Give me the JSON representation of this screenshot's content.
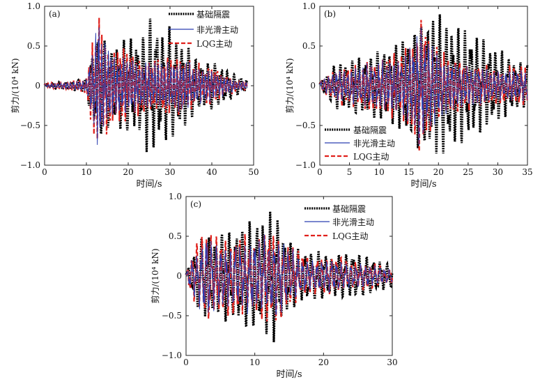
{
  "figure": {
    "panels": [
      "a",
      "b",
      "c"
    ]
  },
  "chart_data": [
    {
      "id": "a",
      "type": "line",
      "label": "(a)",
      "xlabel": "时间/s",
      "ylabel": "剪力/(10⁴ kN)",
      "xlim": [
        0,
        50
      ],
      "ylim": [
        -1.0,
        1.0
      ],
      "xticks": [
        "0",
        "10",
        "20",
        "30",
        "40",
        "50"
      ],
      "yticks": [
        "1.0",
        "0.5",
        "0",
        "−0.5",
        "−1.0"
      ],
      "legend_position": "top-right",
      "legend": [
        "基础隔震",
        "非光滑主动",
        "LQG主动"
      ],
      "series_style": [
        {
          "name": "基础隔震",
          "color": "#000000",
          "dash": "2,1.4",
          "width": 3.2
        },
        {
          "name": "非光滑主动",
          "color": "#2b3fb0",
          "dash": "",
          "width": 1.0
        },
        {
          "name": "LQG主动",
          "color": "#e0201b",
          "dash": "6,3",
          "width": 2.2
        }
      ],
      "envelope": {
        "t": [
          0,
          5,
          10,
          11,
          12,
          13,
          14,
          15,
          16,
          18,
          20,
          22,
          24,
          25,
          26,
          28,
          30,
          32,
          34,
          36,
          38,
          40,
          42,
          44,
          46,
          48.5
        ],
        "base": [
          0.02,
          0.05,
          0.08,
          0.45,
          0.55,
          0.65,
          0.6,
          0.55,
          0.5,
          0.55,
          0.6,
          0.6,
          0.7,
          0.9,
          0.85,
          0.7,
          0.7,
          0.6,
          0.5,
          0.35,
          0.3,
          0.3,
          0.25,
          0.2,
          0.12,
          0.08
        ],
        "active": [
          0.02,
          0.04,
          0.08,
          0.4,
          0.55,
          0.85,
          0.6,
          0.5,
          0.45,
          0.4,
          0.4,
          0.35,
          0.3,
          0.3,
          0.3,
          0.3,
          0.3,
          0.3,
          0.3,
          0.25,
          0.2,
          0.2,
          0.15,
          0.1,
          0.06,
          0.05
        ]
      },
      "period_base": 1.55,
      "period_active": 0.75
    },
    {
      "id": "b",
      "type": "line",
      "label": "(b)",
      "xlabel": "时间/s",
      "ylabel": "剪力/(10⁴ kN)",
      "xlim": [
        0,
        35
      ],
      "ylim": [
        -1.0,
        1.0
      ],
      "xticks": [
        "0",
        "5",
        "10",
        "15",
        "20",
        "25",
        "30",
        "35"
      ],
      "yticks": [
        "1.0",
        "0.5",
        "0",
        "−0.5",
        "−1.0"
      ],
      "legend_position": "bottom-left",
      "legend": [
        "基础隔震",
        "非光滑主动",
        "LQG主动"
      ],
      "series_style": [
        {
          "name": "基础隔震",
          "color": "#000000",
          "dash": "2,1.4",
          "width": 3.2
        },
        {
          "name": "非光滑主动",
          "color": "#2b3fb0",
          "dash": "",
          "width": 1.0
        },
        {
          "name": "LQG主动",
          "color": "#e0201b",
          "dash": "6,3",
          "width": 2.2
        }
      ],
      "envelope": {
        "t": [
          0,
          1,
          3,
          5,
          7,
          9,
          11,
          13,
          15,
          17,
          19,
          21,
          23,
          25,
          27,
          29,
          31,
          33,
          35
        ],
        "base": [
          0.05,
          0.12,
          0.3,
          0.3,
          0.35,
          0.4,
          0.45,
          0.5,
          0.65,
          0.8,
          0.9,
          0.85,
          0.75,
          0.7,
          0.6,
          0.5,
          0.4,
          0.3,
          0.25
        ],
        "active": [
          0.05,
          0.1,
          0.2,
          0.2,
          0.25,
          0.3,
          0.3,
          0.35,
          0.45,
          0.75,
          0.5,
          0.35,
          0.3,
          0.25,
          0.25,
          0.2,
          0.2,
          0.2,
          0.2
        ]
      },
      "period_base": 1.05,
      "period_active": 0.65
    },
    {
      "id": "c",
      "type": "line",
      "label": "(c)",
      "xlabel": "时间/s",
      "ylabel": "剪力/(10⁴ kN)",
      "xlim": [
        0,
        30
      ],
      "ylim": [
        -1.0,
        1.0
      ],
      "xticks": [
        "0",
        "10",
        "20",
        "30"
      ],
      "yticks": [
        "1.0",
        "0.5",
        "0",
        "−0.5",
        "−1.0"
      ],
      "legend_position": "top-right",
      "legend": [
        "基础隔震",
        "非光滑主动",
        "LQG主动"
      ],
      "series_style": [
        {
          "name": "基础隔震",
          "color": "#000000",
          "dash": "2,1.4",
          "width": 3.2
        },
        {
          "name": "非光滑主动",
          "color": "#2b3fb0",
          "dash": "",
          "width": 1.0
        },
        {
          "name": "LQG主动",
          "color": "#e0201b",
          "dash": "6,3",
          "width": 2.2
        }
      ],
      "envelope": {
        "t": [
          0,
          1,
          2,
          3,
          4,
          6,
          8,
          10,
          12,
          13,
          14,
          15,
          16,
          18,
          20,
          22,
          24,
          26,
          28,
          30
        ],
        "base": [
          0.05,
          0.25,
          0.45,
          0.5,
          0.5,
          0.55,
          0.65,
          0.7,
          0.75,
          0.8,
          0.6,
          0.45,
          0.35,
          0.3,
          0.3,
          0.25,
          0.3,
          0.25,
          0.2,
          0.12
        ],
        "active": [
          0.05,
          0.25,
          0.4,
          0.6,
          0.4,
          0.4,
          0.45,
          0.45,
          0.5,
          0.5,
          0.45,
          0.35,
          0.3,
          0.2,
          0.2,
          0.2,
          0.15,
          0.15,
          0.12,
          0.08
        ]
      },
      "period_base": 1.0,
      "period_active": 0.7
    }
  ]
}
